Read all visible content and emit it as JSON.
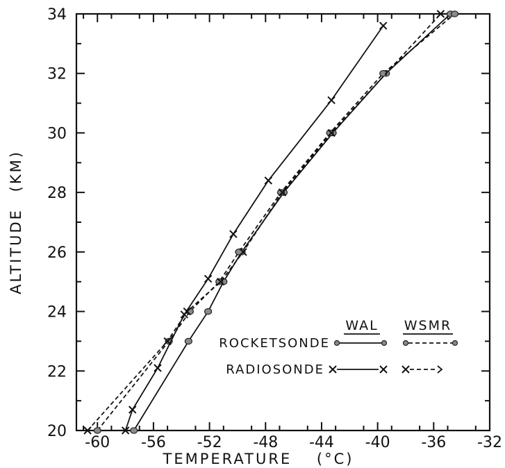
{
  "chart_data": {
    "type": "line",
    "xlabel": "TEMPERATURE",
    "xlabel_unit": "(°C)",
    "ylabel": "ALTITUDE",
    "ylabel_unit": "(KM)",
    "xlim": [
      -61.5,
      -32
    ],
    "ylim": [
      20,
      34
    ],
    "x_ticks": [
      -60,
      -56,
      -52,
      -48,
      -44,
      -40,
      -36,
      -32
    ],
    "x_tick_labels": [
      "-60",
      "-56",
      "-52",
      "-48",
      "-44",
      "-40",
      "-36",
      "-32"
    ],
    "y_ticks": [
      20,
      22,
      24,
      26,
      28,
      30,
      32,
      34
    ],
    "y_tick_labels": [
      "20",
      "22",
      "24",
      "26",
      "28",
      "30",
      "32",
      "34"
    ],
    "grid": false,
    "legend": {
      "placement": "bottom-right",
      "column_headers": [
        "WAL",
        "WSMR"
      ],
      "row_labels": [
        "ROCKETSONDE",
        "RADIOSONDE"
      ]
    },
    "series": [
      {
        "name": "ROCKETSONDE WAL",
        "marker": "dot",
        "linestyle": "solid",
        "points": [
          [
            -57.4,
            20
          ],
          [
            -53.5,
            23
          ],
          [
            -52.1,
            24
          ],
          [
            -51.0,
            25
          ],
          [
            -49.7,
            26
          ],
          [
            -46.7,
            28
          ],
          [
            -43.2,
            30
          ],
          [
            -39.4,
            32
          ],
          [
            -34.8,
            34
          ]
        ]
      },
      {
        "name": "ROCKETSONDE WSMR",
        "marker": "dot",
        "linestyle": "dashed",
        "points": [
          [
            -60.0,
            20
          ],
          [
            -54.9,
            23
          ],
          [
            -53.4,
            24
          ],
          [
            -51.3,
            25
          ],
          [
            -49.9,
            26
          ],
          [
            -46.9,
            28
          ],
          [
            -43.4,
            30
          ],
          [
            -39.6,
            32
          ],
          [
            -34.5,
            34
          ]
        ]
      },
      {
        "name": "RADIOSONDE WAL",
        "marker": "x",
        "linestyle": "solid",
        "points": [
          [
            -58.0,
            20
          ],
          [
            -57.5,
            20.7
          ],
          [
            -55.7,
            22.1
          ],
          [
            -53.8,
            23.9
          ],
          [
            -52.1,
            25.1
          ],
          [
            -50.3,
            26.6
          ],
          [
            -47.8,
            28.4
          ],
          [
            -43.3,
            31.1
          ],
          [
            -39.6,
            33.6
          ]
        ]
      },
      {
        "name": "RADIOSONDE WSMR",
        "marker": "x",
        "linestyle": "dashed",
        "points": [
          [
            -60.7,
            20
          ],
          [
            -55.0,
            23.0
          ],
          [
            -53.6,
            24.0
          ],
          [
            -51.2,
            25.0
          ],
          [
            -49.6,
            26.0
          ],
          [
            -46.8,
            28.0
          ],
          [
            -43.3,
            30.0
          ],
          [
            -35.5,
            34.0
          ]
        ]
      }
    ]
  }
}
